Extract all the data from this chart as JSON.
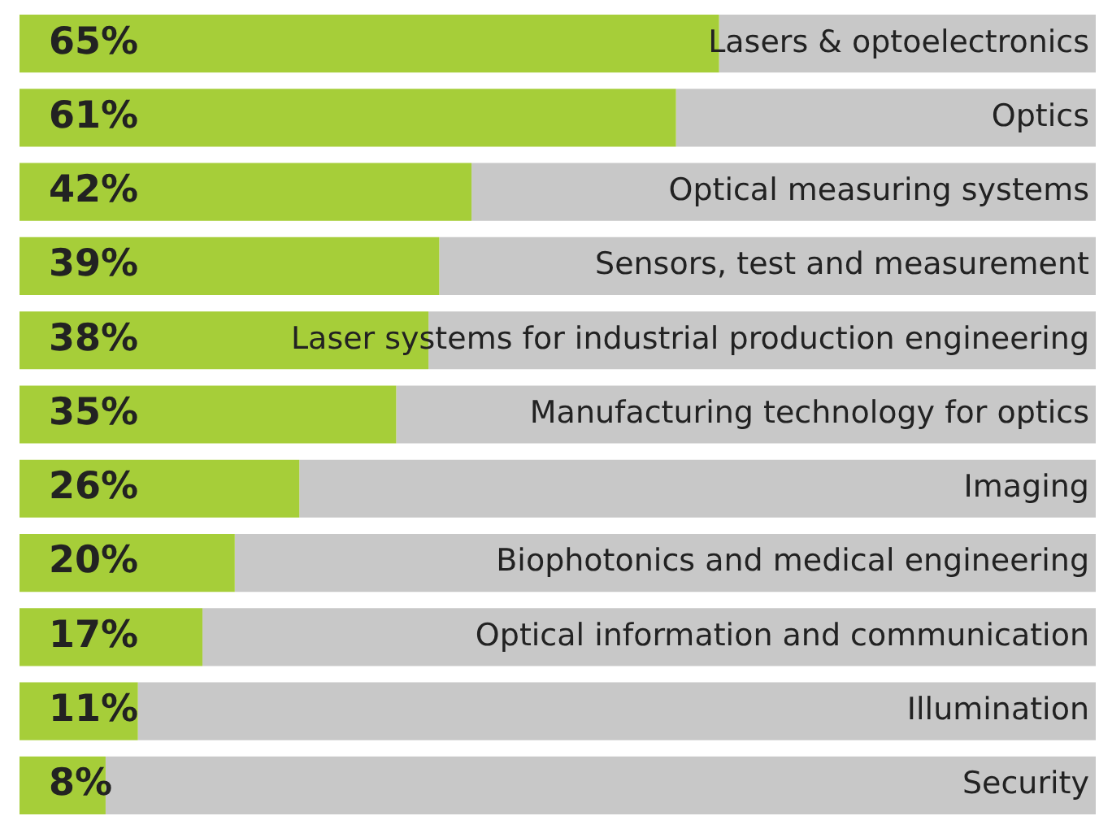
{
  "chart_data": {
    "type": "bar",
    "orientation": "horizontal",
    "stacked": true,
    "categories": [
      "Lasers & optoelectronics",
      "Optics",
      "Optical measuring systems",
      "Sensors, test and measurement",
      "Laser systems for industrial production engineering",
      "Manufacturing technology for optics",
      "Imaging",
      "Biophotonics and medical engineering",
      "Optical information and communication",
      "Illumination",
      "Security"
    ],
    "series": [
      {
        "color": "#a6ce39",
        "values": [
          65,
          61,
          42,
          39,
          38,
          35,
          26,
          20,
          17,
          11,
          8
        ],
        "value_labels": [
          "65%",
          "61%",
          "42%",
          "39%",
          "38%",
          "35%",
          "26%",
          "20%",
          "17%",
          "11%",
          "8%"
        ]
      },
      {
        "color": "#c8c8c8",
        "values": [
          35,
          39,
          58,
          61,
          62,
          65,
          74,
          80,
          83,
          89,
          92
        ]
      }
    ],
    "xlim": [
      0,
      100
    ],
    "tick_labels": false,
    "legend": false
  }
}
